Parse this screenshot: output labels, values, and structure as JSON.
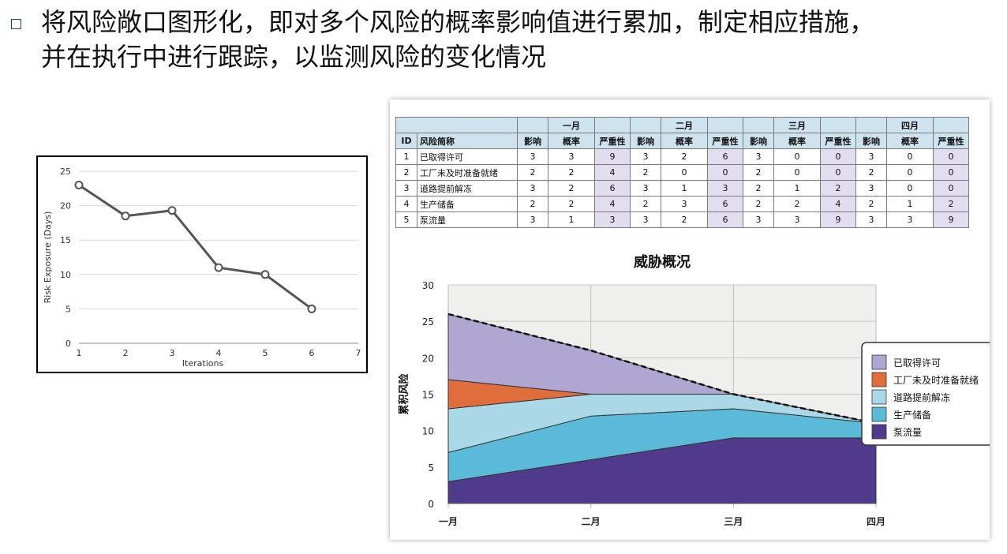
{
  "slide": {
    "bullet_line1": "将风险敞口图形化，即对多个风险的概率影响值进行累加，制定相应措施，",
    "bullet_line2": "并在执行中进行跟踪，以监测风险的变化情况"
  },
  "table": {
    "months": [
      "一月",
      "二月",
      "三月",
      "四月"
    ],
    "col_id": "ID",
    "col_name": "风险简称",
    "sub_headers": [
      "影响",
      "概率",
      "严重性"
    ],
    "rows": [
      {
        "id": "1",
        "name": "已取得许可",
        "vals": [
          "3",
          "3",
          "9",
          "3",
          "2",
          "6",
          "3",
          "0",
          "0",
          "3",
          "0",
          "0"
        ]
      },
      {
        "id": "2",
        "name": "工厂未及时准备就绪",
        "vals": [
          "2",
          "2",
          "4",
          "2",
          "0",
          "0",
          "2",
          "0",
          "0",
          "2",
          "0",
          "0"
        ]
      },
      {
        "id": "3",
        "name": "道路提前解冻",
        "vals": [
          "3",
          "2",
          "6",
          "3",
          "1",
          "3",
          "2",
          "1",
          "2",
          "3",
          "0",
          "0"
        ]
      },
      {
        "id": "4",
        "name": "生产储备",
        "vals": [
          "2",
          "2",
          "4",
          "2",
          "3",
          "6",
          "2",
          "2",
          "4",
          "2",
          "1",
          "2"
        ]
      },
      {
        "id": "5",
        "name": "泵流量",
        "vals": [
          "3",
          "1",
          "3",
          "3",
          "2",
          "6",
          "3",
          "3",
          "9",
          "3",
          "3",
          "9"
        ]
      }
    ]
  },
  "chart_data": [
    {
      "type": "line",
      "title": "",
      "xlabel": "Iterations",
      "ylabel": "Risk Exposure (Days)",
      "x": [
        1,
        2,
        3,
        4,
        5,
        6
      ],
      "series": [
        {
          "values": [
            23,
            18.5,
            19.3,
            11,
            10,
            5
          ]
        }
      ],
      "xlim": [
        1,
        7
      ],
      "ylim": [
        0,
        25
      ],
      "xticks": [
        "1",
        "2",
        "3",
        "4",
        "5",
        "6",
        "7"
      ],
      "yticks": [
        "0",
        "5",
        "10",
        "15",
        "20",
        "25"
      ],
      "grid": true,
      "color": "#555555"
    },
    {
      "type": "area",
      "title": "威胁概况",
      "xlabel": "",
      "ylabel": "累积风险",
      "categories": [
        "一月",
        "二月",
        "三月",
        "四月"
      ],
      "ylim": [
        0,
        30
      ],
      "yticks": [
        "0",
        "5",
        "10",
        "15",
        "20",
        "25",
        "30"
      ],
      "legend_position": "right",
      "series": [
        {
          "name": "泵流量",
          "values": [
            3,
            6,
            9,
            9
          ],
          "color": "#4f3a8c"
        },
        {
          "name": "生产储备",
          "values": [
            4,
            6,
            4,
            2
          ],
          "color": "#5bbad8"
        },
        {
          "name": "道路提前解冻",
          "values": [
            6,
            3,
            2,
            0
          ],
          "color": "#aad8e6"
        },
        {
          "name": "工厂未及时准备就绪",
          "values": [
            4,
            0,
            0,
            0
          ],
          "color": "#e06d3c"
        },
        {
          "name": "已取得许可",
          "values": [
            9,
            6,
            0,
            0
          ],
          "color": "#b0a6d2"
        }
      ],
      "total_line": [
        26,
        21,
        15,
        11
      ],
      "legend_order": [
        "已取得许可",
        "工厂未及时准备就绪",
        "道路提前解冻",
        "生产储备",
        "泵流量"
      ]
    }
  ]
}
